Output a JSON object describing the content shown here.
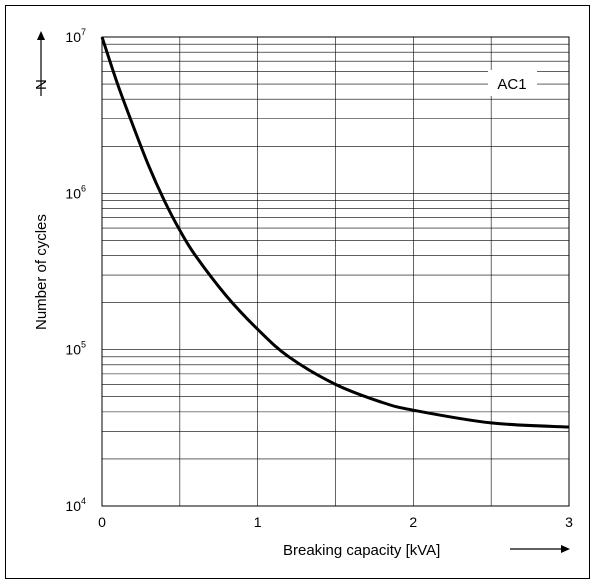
{
  "chart_data": {
    "type": "line",
    "title": "",
    "xlabel": "Breaking capacity [kVA]",
    "ylabel": "Number of cycles",
    "ylabel_symbol": "N",
    "xlim": [
      0,
      3
    ],
    "ylim": [
      10000,
      10000000
    ],
    "yscale": "log",
    "grid": true,
    "x_ticks": [
      0,
      1,
      2,
      3
    ],
    "y_ticks": [
      {
        "base": "10",
        "exp": "4"
      },
      {
        "base": "10",
        "exp": "5"
      },
      {
        "base": "10",
        "exp": "6"
      },
      {
        "base": "10",
        "exp": "7"
      }
    ],
    "annotation": "AC1",
    "series": [
      {
        "x": [
          0,
          0.1,
          0.2,
          0.3,
          0.4,
          0.5,
          0.6,
          0.8,
          1.0,
          1.2,
          1.5,
          1.8,
          2.0,
          2.5,
          3.0
        ],
        "y": [
          10000000,
          5000000,
          2700000,
          1500000,
          900000,
          580000,
          400000,
          220000,
          135000,
          90000,
          60000,
          46000,
          41000,
          34000,
          32000
        ]
      }
    ]
  }
}
